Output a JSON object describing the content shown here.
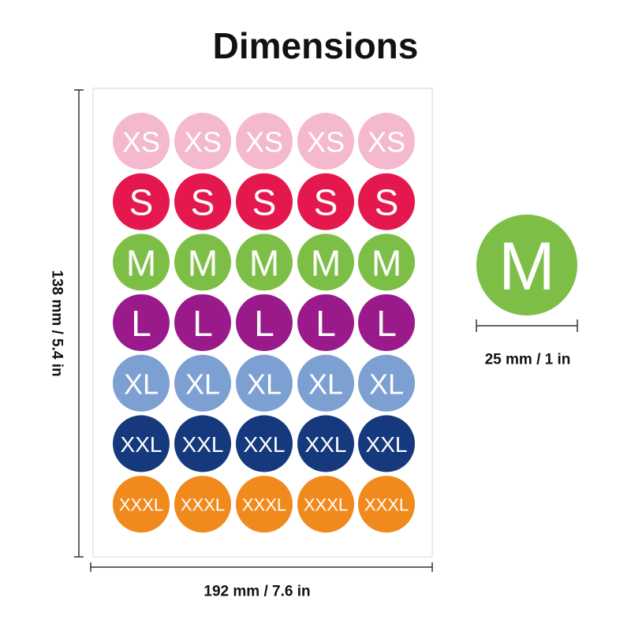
{
  "header": {
    "title": "Dimensions"
  },
  "sheet": {
    "rows": [
      {
        "labels": [
          "XS",
          "XS",
          "XS",
          "XS",
          "XS"
        ],
        "color": "#f4b9cd"
      },
      {
        "labels": [
          "S",
          "S",
          "S",
          "S",
          "S"
        ],
        "color": "#e5184e"
      },
      {
        "labels": [
          "M",
          "M",
          "M",
          "M",
          "M"
        ],
        "color": "#7dbf46"
      },
      {
        "labels": [
          "L",
          "L",
          "L",
          "L",
          "L"
        ],
        "color": "#9a1a8b"
      },
      {
        "labels": [
          "XL",
          "XL",
          "XL",
          "XL",
          "XL"
        ],
        "color": "#7ca0d2"
      },
      {
        "labels": [
          "XXL",
          "XXL",
          "XXL",
          "XXL",
          "XXL"
        ],
        "color": "#16387d"
      },
      {
        "labels": [
          "XXXL",
          "XXXL",
          "XXXL",
          "XXXL",
          "XXXL"
        ],
        "color": "#f18a1d"
      }
    ],
    "height_label": "138 mm / 5.4 in",
    "width_label": "192 mm / 7.6 in"
  },
  "sample": {
    "label": "M",
    "color": "#7dbf46",
    "size_label": "25 mm / 1 in"
  }
}
